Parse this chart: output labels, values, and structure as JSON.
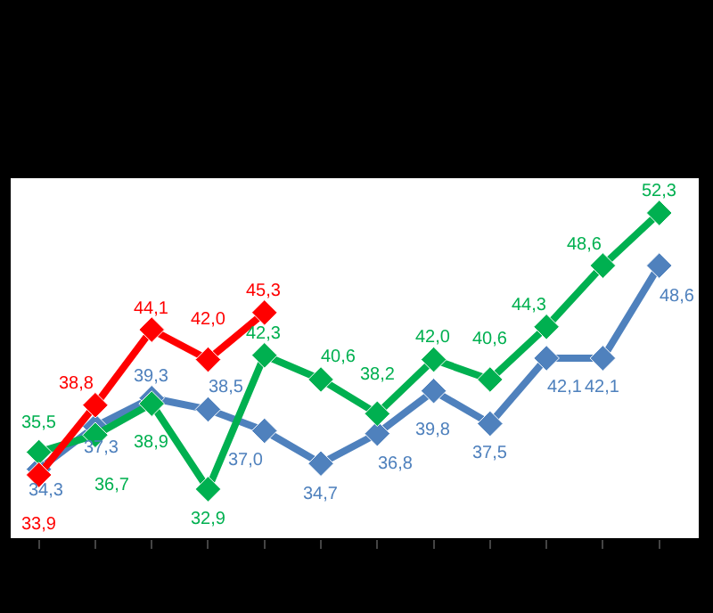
{
  "chart_data": {
    "type": "line",
    "categories": [
      null,
      null,
      null,
      null,
      null,
      null,
      null,
      null,
      null,
      null,
      null,
      null
    ],
    "series": [
      {
        "color": "#4f81bd",
        "values": [
          34.3,
          37.3,
          39.3,
          38.5,
          37.0,
          34.7,
          36.8,
          39.8,
          37.5,
          42.1,
          42.1,
          48.6
        ],
        "value_labels": [
          "34,3",
          "37,3",
          "39,3",
          "38,5",
          "37,0",
          "34,7",
          "36,8",
          "39,8",
          "37,5",
          "42,1",
          "42,1",
          "48,6"
        ]
      },
      {
        "color": "#00b050",
        "values": [
          35.5,
          36.7,
          38.9,
          32.9,
          42.3,
          40.6,
          38.2,
          42.0,
          40.6,
          44.3,
          48.6,
          52.3
        ],
        "value_labels": [
          "35,5",
          "36,7",
          "38,9",
          "32,9",
          "42,3",
          "40,6",
          "38,2",
          "42,0",
          "40,6",
          "44,3",
          "48,6",
          "52,3"
        ]
      },
      {
        "color": "#ff0000",
        "values": [
          33.9,
          38.8,
          44.1,
          42.0,
          45.3,
          null,
          null,
          null,
          null,
          null,
          null,
          null
        ],
        "value_labels": [
          "33,9",
          "38,8",
          "44,1",
          "42,0",
          "45,3",
          null,
          null,
          null,
          null,
          null,
          null,
          null
        ]
      }
    ],
    "tick_labels": false,
    "marker": "diamond",
    "line_style": "solid"
  }
}
